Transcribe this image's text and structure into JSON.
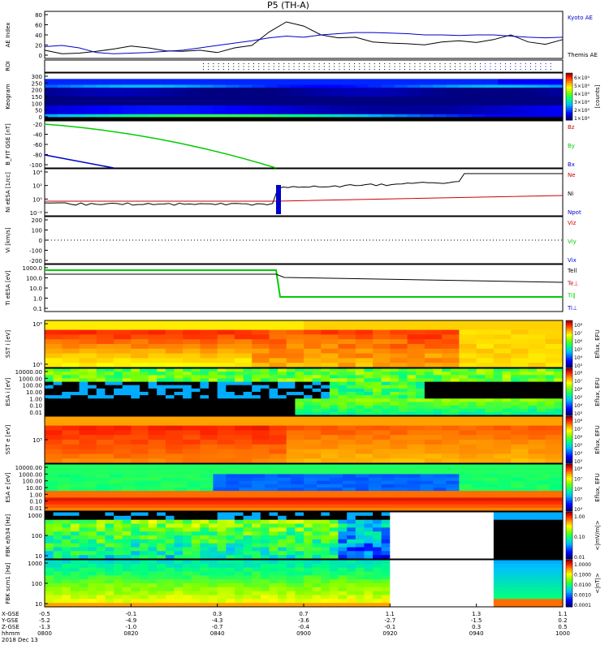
{
  "title": "P5 (TH-A)",
  "footer": {
    "date": "2018 Dec 13"
  },
  "chart_data": [
    {
      "type": "line",
      "panel": "ae",
      "ylabel": "AE Index",
      "yticks": [
        "80",
        "60",
        "40",
        "20",
        "0"
      ],
      "ylim": [
        0,
        80
      ],
      "legend": [
        {
          "name": "Kyoto AE",
          "color": "#0000cc"
        },
        {
          "name": "Themis AE",
          "color": "#000000"
        }
      ],
      "series": [
        {
          "name": "Themis AE",
          "color": "#000000",
          "x": [
            0,
            2,
            4,
            6,
            8,
            10,
            12,
            14,
            16,
            18,
            20,
            22,
            24,
            26,
            28,
            30,
            32,
            34,
            36,
            38,
            40,
            42,
            44,
            46,
            48,
            50,
            52,
            54,
            56,
            58,
            60
          ],
          "y": [
            14,
            8,
            9,
            12,
            16,
            21,
            18,
            13,
            12,
            14,
            10,
            18,
            22,
            45,
            62,
            55,
            40,
            35,
            36,
            28,
            26,
            25,
            23,
            28,
            30,
            27,
            32,
            40,
            28,
            24,
            32
          ]
        },
        {
          "name": "Kyoto AE",
          "color": "#0000cc",
          "x": [
            0,
            2,
            4,
            6,
            8,
            10,
            12,
            14,
            16,
            18,
            20,
            22,
            24,
            26,
            28,
            30,
            32,
            34,
            36,
            38,
            40,
            42,
            44,
            46,
            48,
            50,
            52,
            54,
            56,
            58,
            60
          ],
          "y": [
            20,
            22,
            18,
            10,
            8,
            9,
            10,
            12,
            14,
            18,
            22,
            26,
            30,
            35,
            38,
            36,
            40,
            42,
            44,
            44,
            43,
            42,
            40,
            40,
            39,
            40,
            40,
            38,
            36,
            35,
            36
          ]
        }
      ]
    },
    {
      "type": "heatmap",
      "panel": "roi",
      "ylabel": "ROI"
    },
    {
      "type": "heatmap",
      "panel": "keogram",
      "ylabel": "Keogram",
      "yticks": [
        "300",
        "250",
        "200",
        "150",
        "100",
        "50",
        "0"
      ],
      "ylim": [
        0,
        300
      ],
      "colorbar": {
        "ticks": [
          "6×10⁴",
          "5×10⁴",
          "4×10⁴",
          "3×10⁴",
          "2×10⁴",
          "1×10⁴"
        ],
        "label": "[counts]"
      }
    },
    {
      "type": "line",
      "panel": "bfield",
      "ylabel": "B_FIT GSE [nT]",
      "yticks": [
        "-20",
        "-40",
        "-60",
        "-80",
        "-100"
      ],
      "ylim": [
        -100,
        -20
      ],
      "legend": [
        {
          "name": "Bz",
          "color": "#cc0000"
        },
        {
          "name": "By",
          "color": "#00cc00"
        },
        {
          "name": "Bx",
          "color": "#0000cc"
        }
      ]
    },
    {
      "type": "line",
      "panel": "density",
      "ylabel": "Ni eESA [1/cc]",
      "yticks": [
        "10⁴",
        "10²",
        "10⁰",
        "10⁻²"
      ],
      "legend": [
        {
          "name": "Ne",
          "color": "#cc0000"
        },
        {
          "name": "Ni",
          "color": "#000000"
        },
        {
          "name": "Npot",
          "color": "#0000cc"
        }
      ]
    },
    {
      "type": "line",
      "panel": "velocity",
      "ylabel": "Vi [km/s]",
      "yticks": [
        "200",
        "100",
        "0",
        "-100",
        "-200"
      ],
      "ylim": [
        -250,
        250
      ],
      "legend": [
        {
          "name": "Viz",
          "color": "#cc0000"
        },
        {
          "name": "Viy",
          "color": "#00cc00"
        },
        {
          "name": "Vix",
          "color": "#0000cc"
        }
      ]
    },
    {
      "type": "line",
      "panel": "temperature",
      "ylabel": "Ti eESA [eV]",
      "yticks": [
        "1000.0",
        "100.0",
        "10.0",
        "1.0",
        "0.1"
      ],
      "legend": [
        {
          "name": "Tell",
          "color": "#000000"
        },
        {
          "name": "Te⊥",
          "color": "#cc0000"
        },
        {
          "name": "Ti∥",
          "color": "#00cc00"
        },
        {
          "name": "Ti⊥",
          "color": "#0000cc"
        }
      ]
    },
    {
      "type": "heatmap",
      "panel": "sst-ion",
      "ylabel": "SST i [eV]",
      "yticks": [
        "10⁶",
        "10⁵"
      ],
      "colorbar": {
        "ticks": [
          "10⁸",
          "10⁷",
          "10⁶",
          "10⁵",
          "10⁴",
          "10³"
        ],
        "label": "Eflux, EFU"
      }
    },
    {
      "type": "heatmap",
      "panel": "esa-ion",
      "ylabel": "ESA i [eV]",
      "yticks": [
        "10000.00",
        "1000.00",
        "100.00",
        "10.00",
        "1.00",
        "0.10",
        "0.01"
      ],
      "colorbar": {
        "ticks": [
          "10⁸",
          "10⁷",
          "10⁶",
          "10⁵",
          "10⁴",
          "10³"
        ],
        "label": "Eflux, EFU"
      }
    },
    {
      "type": "heatmap",
      "panel": "sst-electron",
      "ylabel": "SST e [eV]",
      "yticks": [
        "10⁵"
      ],
      "colorbar": {
        "ticks": [
          "10⁸",
          "10⁷",
          "10⁶",
          "10⁵",
          "10⁴",
          "10³"
        ],
        "label": "Eflux, EFU"
      }
    },
    {
      "type": "heatmap",
      "panel": "esa-electron",
      "ylabel": "ESA e [eV]",
      "yticks": [
        "10000.00",
        "1000.00",
        "100.00",
        "10.00",
        "1.00",
        "0.10",
        "0.01"
      ],
      "colorbar": {
        "ticks": [
          "10⁸",
          "10⁷",
          "10⁶",
          "10⁵",
          "10⁴"
        ],
        "label": "Eflux, EFU"
      }
    },
    {
      "type": "heatmap",
      "panel": "fbk-e",
      "ylabel": "FBK e/b34 [Hz]",
      "yticks": [
        "1000",
        "100",
        "10"
      ],
      "colorbar": {
        "ticks": [
          "1.00",
          "0.10",
          "0.01"
        ],
        "label": "<|mV/m|>"
      }
    },
    {
      "type": "heatmap",
      "panel": "fbk-b",
      "ylabel": "FBK scm1 [Hz]",
      "yticks": [
        "1000",
        "100",
        "10"
      ],
      "colorbar": {
        "ticks": [
          "1.0000",
          "0.1000",
          "0.0100",
          "0.0010",
          "0.0001"
        ],
        "label": "<|nT|>"
      }
    }
  ],
  "xaxis": {
    "row_labels": [
      "X-GSE",
      "Y-GSE",
      "Z-GSE",
      "hhmm",
      "2018 Dec 13"
    ],
    "columns": [
      {
        "x": "-0.5",
        "y": "-5.2",
        "z": "-1.3",
        "time": "0800"
      },
      {
        "x": "-0.1",
        "y": "-4.9",
        "z": "-1.0",
        "time": "0820"
      },
      {
        "x": "0.3",
        "y": "-4.3",
        "z": "-0.7",
        "time": "0840"
      },
      {
        "x": "0.7",
        "y": "-3.6",
        "z": "-0.4",
        "time": "0900"
      },
      {
        "x": "1.1",
        "y": "-2.7",
        "z": "-0.1",
        "time": "0920"
      },
      {
        "x": "1.3",
        "y": "-1.5",
        "z": "0.3",
        "time": "0940"
      },
      {
        "x": "1.1",
        "y": "0.2",
        "z": "0.5",
        "time": "1000"
      }
    ]
  }
}
